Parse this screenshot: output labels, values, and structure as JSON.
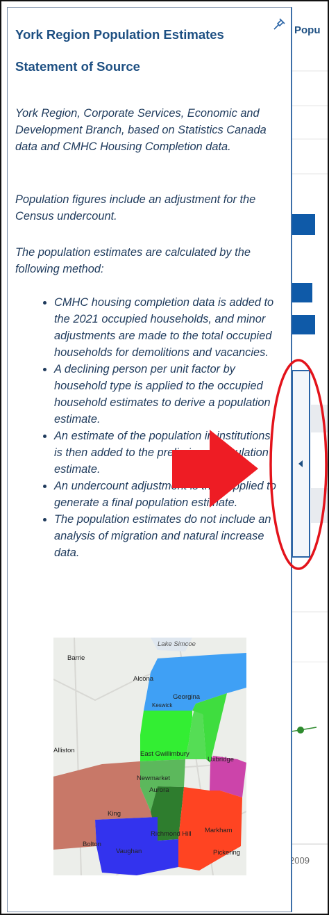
{
  "panel": {
    "title": "York Region Population Estimates",
    "subtitle": "Statement of Source",
    "paragraphs": [
      "York Region, Corporate Services, Economic and Development Branch, based on Statistics Canada data and CMHC Housing Completion data.",
      "Population figures include an adjustment for the Census undercount.",
      "The population estimates are calculated by the following method:"
    ],
    "bullets": [
      "CMHC housing completion data is added to the 2021 occupied households, and minor adjustments are made to the total occupied households for demolitions and vacancies.",
      "A declining person per unit factor by household type is applied to the occupied household estimates to derive a population estimate.",
      "An estimate of the population in institutions is then added to the preliminary population estimate.",
      "An undercount adjustment is then applied to generate a final population estimate.",
      "The population estimates do not include an analysis of migration and natural increase data."
    ]
  },
  "map": {
    "labels": [
      "Lake Simcoe",
      "Barrie",
      "Alcona",
      "Georgina",
      "Keswick",
      "Alliston",
      "East Gwillimbury",
      "Uxbridge",
      "Newmarket",
      "Aurora",
      "King",
      "Richmond Hill",
      "Markham",
      "Bolton",
      "Vaughan",
      "Pickering"
    ]
  },
  "background": {
    "header": "Popu",
    "axis_label": "2009"
  }
}
